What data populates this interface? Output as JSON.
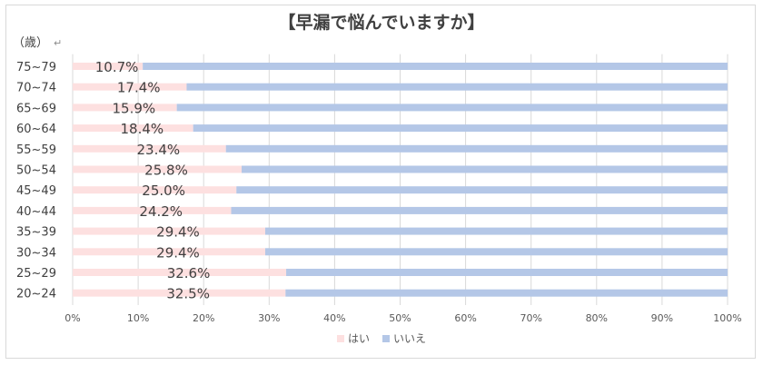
{
  "chart_data": {
    "type": "bar",
    "orientation": "horizontal",
    "stacked": true,
    "title": "【早漏で悩んでいますか】",
    "unit_label": "（歳）",
    "categories": [
      "75~79",
      "70~74",
      "65~69",
      "60~64",
      "55~59",
      "50~54",
      "45~49",
      "40~44",
      "35~39",
      "30~34",
      "25~29",
      "20~24"
    ],
    "series": [
      {
        "name": "はい",
        "color": "#fde0e0",
        "values": [
          10.7,
          17.4,
          15.9,
          18.4,
          23.4,
          25.8,
          25.0,
          24.2,
          29.4,
          29.4,
          32.6,
          32.5
        ],
        "data_labels": [
          "10.7%",
          "17.4%",
          "15.9%",
          "18.4%",
          "23.4%",
          "25.8%",
          "25.0%",
          "24.2%",
          "29.4%",
          "29.4%",
          "32.6%",
          "32.5%"
        ]
      },
      {
        "name": "いいえ",
        "color": "#b4c7e7",
        "values": [
          89.3,
          82.6,
          84.1,
          81.6,
          76.6,
          74.2,
          75.0,
          75.8,
          70.6,
          70.6,
          67.4,
          67.5
        ]
      }
    ],
    "xlim": [
      0,
      100
    ],
    "x_ticks": [
      "0%",
      "10%",
      "20%",
      "30%",
      "40%",
      "50%",
      "60%",
      "70%",
      "80%",
      "90%",
      "100%"
    ],
    "grid": true,
    "legend_position": "bottom"
  }
}
